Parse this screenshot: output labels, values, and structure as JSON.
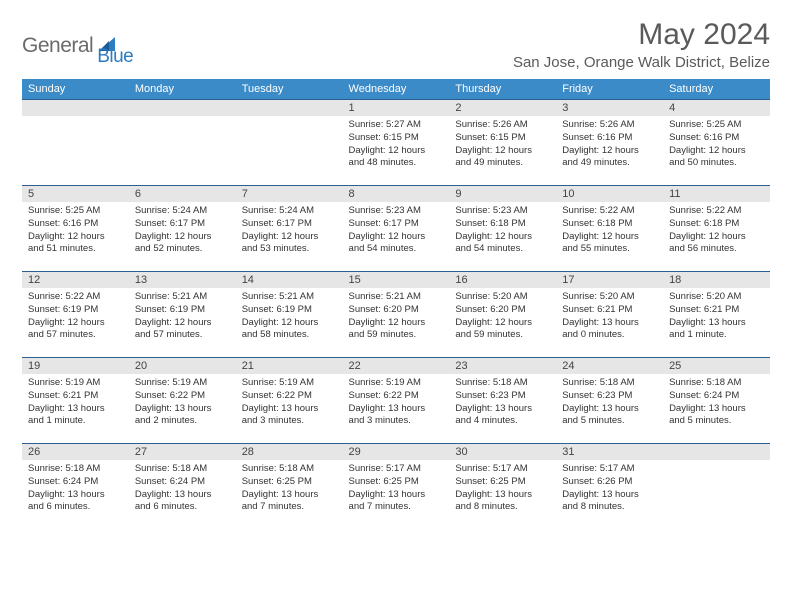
{
  "logo": {
    "text1": "General",
    "text2": "Blue"
  },
  "title": "May 2024",
  "location": "San Jose, Orange Walk District, Belize",
  "colors": {
    "header_bg": "#3b8bc9",
    "header_text": "#ffffff",
    "daynum_bg": "#e6e6e6",
    "border": "#2b5f8f",
    "logo_gray": "#6b6b6b",
    "logo_blue": "#2b7cc0"
  },
  "dayNames": [
    "Sunday",
    "Monday",
    "Tuesday",
    "Wednesday",
    "Thursday",
    "Friday",
    "Saturday"
  ],
  "weeks": [
    [
      {
        "n": "",
        "l1": "",
        "l2": "",
        "l3": "",
        "l4": ""
      },
      {
        "n": "",
        "l1": "",
        "l2": "",
        "l3": "",
        "l4": ""
      },
      {
        "n": "",
        "l1": "",
        "l2": "",
        "l3": "",
        "l4": ""
      },
      {
        "n": "1",
        "l1": "Sunrise: 5:27 AM",
        "l2": "Sunset: 6:15 PM",
        "l3": "Daylight: 12 hours",
        "l4": "and 48 minutes."
      },
      {
        "n": "2",
        "l1": "Sunrise: 5:26 AM",
        "l2": "Sunset: 6:15 PM",
        "l3": "Daylight: 12 hours",
        "l4": "and 49 minutes."
      },
      {
        "n": "3",
        "l1": "Sunrise: 5:26 AM",
        "l2": "Sunset: 6:16 PM",
        "l3": "Daylight: 12 hours",
        "l4": "and 49 minutes."
      },
      {
        "n": "4",
        "l1": "Sunrise: 5:25 AM",
        "l2": "Sunset: 6:16 PM",
        "l3": "Daylight: 12 hours",
        "l4": "and 50 minutes."
      }
    ],
    [
      {
        "n": "5",
        "l1": "Sunrise: 5:25 AM",
        "l2": "Sunset: 6:16 PM",
        "l3": "Daylight: 12 hours",
        "l4": "and 51 minutes."
      },
      {
        "n": "6",
        "l1": "Sunrise: 5:24 AM",
        "l2": "Sunset: 6:17 PM",
        "l3": "Daylight: 12 hours",
        "l4": "and 52 minutes."
      },
      {
        "n": "7",
        "l1": "Sunrise: 5:24 AM",
        "l2": "Sunset: 6:17 PM",
        "l3": "Daylight: 12 hours",
        "l4": "and 53 minutes."
      },
      {
        "n": "8",
        "l1": "Sunrise: 5:23 AM",
        "l2": "Sunset: 6:17 PM",
        "l3": "Daylight: 12 hours",
        "l4": "and 54 minutes."
      },
      {
        "n": "9",
        "l1": "Sunrise: 5:23 AM",
        "l2": "Sunset: 6:18 PM",
        "l3": "Daylight: 12 hours",
        "l4": "and 54 minutes."
      },
      {
        "n": "10",
        "l1": "Sunrise: 5:22 AM",
        "l2": "Sunset: 6:18 PM",
        "l3": "Daylight: 12 hours",
        "l4": "and 55 minutes."
      },
      {
        "n": "11",
        "l1": "Sunrise: 5:22 AM",
        "l2": "Sunset: 6:18 PM",
        "l3": "Daylight: 12 hours",
        "l4": "and 56 minutes."
      }
    ],
    [
      {
        "n": "12",
        "l1": "Sunrise: 5:22 AM",
        "l2": "Sunset: 6:19 PM",
        "l3": "Daylight: 12 hours",
        "l4": "and 57 minutes."
      },
      {
        "n": "13",
        "l1": "Sunrise: 5:21 AM",
        "l2": "Sunset: 6:19 PM",
        "l3": "Daylight: 12 hours",
        "l4": "and 57 minutes."
      },
      {
        "n": "14",
        "l1": "Sunrise: 5:21 AM",
        "l2": "Sunset: 6:19 PM",
        "l3": "Daylight: 12 hours",
        "l4": "and 58 minutes."
      },
      {
        "n": "15",
        "l1": "Sunrise: 5:21 AM",
        "l2": "Sunset: 6:20 PM",
        "l3": "Daylight: 12 hours",
        "l4": "and 59 minutes."
      },
      {
        "n": "16",
        "l1": "Sunrise: 5:20 AM",
        "l2": "Sunset: 6:20 PM",
        "l3": "Daylight: 12 hours",
        "l4": "and 59 minutes."
      },
      {
        "n": "17",
        "l1": "Sunrise: 5:20 AM",
        "l2": "Sunset: 6:21 PM",
        "l3": "Daylight: 13 hours",
        "l4": "and 0 minutes."
      },
      {
        "n": "18",
        "l1": "Sunrise: 5:20 AM",
        "l2": "Sunset: 6:21 PM",
        "l3": "Daylight: 13 hours",
        "l4": "and 1 minute."
      }
    ],
    [
      {
        "n": "19",
        "l1": "Sunrise: 5:19 AM",
        "l2": "Sunset: 6:21 PM",
        "l3": "Daylight: 13 hours",
        "l4": "and 1 minute."
      },
      {
        "n": "20",
        "l1": "Sunrise: 5:19 AM",
        "l2": "Sunset: 6:22 PM",
        "l3": "Daylight: 13 hours",
        "l4": "and 2 minutes."
      },
      {
        "n": "21",
        "l1": "Sunrise: 5:19 AM",
        "l2": "Sunset: 6:22 PM",
        "l3": "Daylight: 13 hours",
        "l4": "and 3 minutes."
      },
      {
        "n": "22",
        "l1": "Sunrise: 5:19 AM",
        "l2": "Sunset: 6:22 PM",
        "l3": "Daylight: 13 hours",
        "l4": "and 3 minutes."
      },
      {
        "n": "23",
        "l1": "Sunrise: 5:18 AM",
        "l2": "Sunset: 6:23 PM",
        "l3": "Daylight: 13 hours",
        "l4": "and 4 minutes."
      },
      {
        "n": "24",
        "l1": "Sunrise: 5:18 AM",
        "l2": "Sunset: 6:23 PM",
        "l3": "Daylight: 13 hours",
        "l4": "and 5 minutes."
      },
      {
        "n": "25",
        "l1": "Sunrise: 5:18 AM",
        "l2": "Sunset: 6:24 PM",
        "l3": "Daylight: 13 hours",
        "l4": "and 5 minutes."
      }
    ],
    [
      {
        "n": "26",
        "l1": "Sunrise: 5:18 AM",
        "l2": "Sunset: 6:24 PM",
        "l3": "Daylight: 13 hours",
        "l4": "and 6 minutes."
      },
      {
        "n": "27",
        "l1": "Sunrise: 5:18 AM",
        "l2": "Sunset: 6:24 PM",
        "l3": "Daylight: 13 hours",
        "l4": "and 6 minutes."
      },
      {
        "n": "28",
        "l1": "Sunrise: 5:18 AM",
        "l2": "Sunset: 6:25 PM",
        "l3": "Daylight: 13 hours",
        "l4": "and 7 minutes."
      },
      {
        "n": "29",
        "l1": "Sunrise: 5:17 AM",
        "l2": "Sunset: 6:25 PM",
        "l3": "Daylight: 13 hours",
        "l4": "and 7 minutes."
      },
      {
        "n": "30",
        "l1": "Sunrise: 5:17 AM",
        "l2": "Sunset: 6:25 PM",
        "l3": "Daylight: 13 hours",
        "l4": "and 8 minutes."
      },
      {
        "n": "31",
        "l1": "Sunrise: 5:17 AM",
        "l2": "Sunset: 6:26 PM",
        "l3": "Daylight: 13 hours",
        "l4": "and 8 minutes."
      },
      {
        "n": "",
        "l1": "",
        "l2": "",
        "l3": "",
        "l4": ""
      }
    ]
  ]
}
